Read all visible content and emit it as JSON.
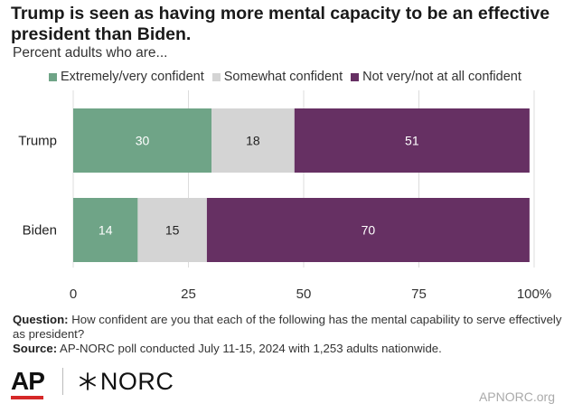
{
  "title": "Trump is seen as having more mental capacity to be an effective president than Biden.",
  "subtitle": "Percent adults who are...",
  "legend": [
    {
      "label": "Extremely/very confident",
      "color": "#6fa487"
    },
    {
      "label": "Somewhat confident",
      "color": "#d4d4d4"
    },
    {
      "label": "Not very/not at all confident",
      "color": "#663063"
    }
  ],
  "chart_data": {
    "type": "bar",
    "orientation": "horizontal",
    "stacked": true,
    "categories": [
      "Trump",
      "Biden"
    ],
    "series": [
      {
        "name": "Extremely/very confident",
        "values": [
          30,
          14
        ],
        "color": "#6fa487",
        "label_color": "#ffffff"
      },
      {
        "name": "Somewhat confident",
        "values": [
          18,
          15
        ],
        "color": "#d4d4d4",
        "label_color": "#222222"
      },
      {
        "name": "Not very/not at all confident",
        "values": [
          51,
          70
        ],
        "color": "#663063",
        "label_color": "#ffffff"
      }
    ],
    "xlim": [
      0,
      100
    ],
    "xticks": [
      0,
      25,
      50,
      75,
      100
    ],
    "xtick_labels": [
      "0",
      "25",
      "50",
      "75",
      "100%"
    ],
    "grid": true,
    "legend_position": "top"
  },
  "notes": {
    "question_label": "Question:",
    "question_text": "How confident are you that each of the following has the mental capability to serve effectively as president?",
    "source_label": "Source:",
    "source_text": "AP-NORC poll conducted July 11-15, 2024 with 1,253 adults nationwide."
  },
  "footer": {
    "ap_logo": "AP",
    "norc_logo": "NORC",
    "website": "APNORC.org"
  }
}
